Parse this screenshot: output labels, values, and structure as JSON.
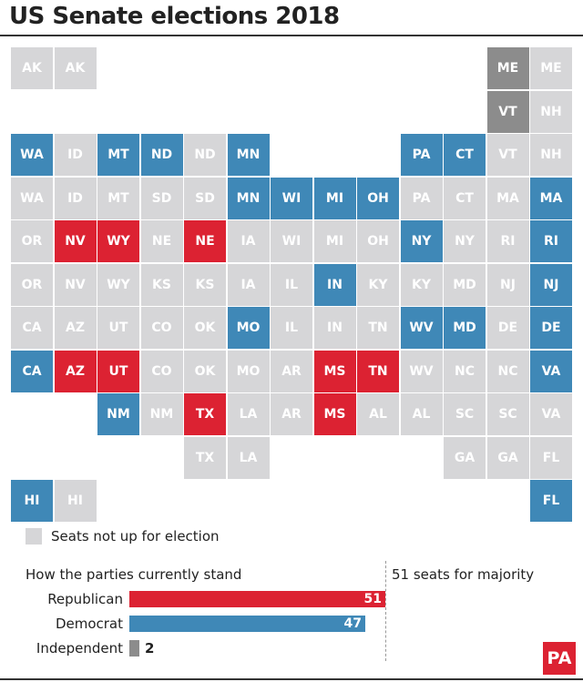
{
  "title": "US Senate elections 2018",
  "colors": {
    "not_up": "#d6d6d8",
    "democrat": "#3f88b7",
    "republican": "#dc2232",
    "independent": "#8c8c8c"
  },
  "map": {
    "grid_columns": 13,
    "grid_rows": 11,
    "tiles": [
      {
        "label": "AK",
        "status": "not_up",
        "col": 0,
        "row": 0
      },
      {
        "label": "AK",
        "status": "not_up",
        "col": 1,
        "row": 0
      },
      {
        "label": "ME",
        "status": "independent",
        "col": 11,
        "row": 0
      },
      {
        "label": "ME",
        "status": "not_up",
        "col": 12,
        "row": 0
      },
      {
        "label": "VT",
        "status": "independent",
        "col": 11,
        "row": 1
      },
      {
        "label": "NH",
        "status": "not_up",
        "col": 12,
        "row": 1
      },
      {
        "label": "WA",
        "status": "democrat",
        "col": 0,
        "row": 2
      },
      {
        "label": "ID",
        "status": "not_up",
        "col": 1,
        "row": 2
      },
      {
        "label": "MT",
        "status": "democrat",
        "col": 2,
        "row": 2
      },
      {
        "label": "ND",
        "status": "democrat",
        "col": 3,
        "row": 2
      },
      {
        "label": "ND",
        "status": "not_up",
        "col": 4,
        "row": 2
      },
      {
        "label": "MN",
        "status": "democrat",
        "col": 5,
        "row": 2
      },
      {
        "label": "PA",
        "status": "democrat",
        "col": 9,
        "row": 2
      },
      {
        "label": "CT",
        "status": "democrat",
        "col": 10,
        "row": 2
      },
      {
        "label": "VT",
        "status": "not_up",
        "col": 11,
        "row": 2
      },
      {
        "label": "NH",
        "status": "not_up",
        "col": 12,
        "row": 2
      },
      {
        "label": "WA",
        "status": "not_up",
        "col": 0,
        "row": 3
      },
      {
        "label": "ID",
        "status": "not_up",
        "col": 1,
        "row": 3
      },
      {
        "label": "MT",
        "status": "not_up",
        "col": 2,
        "row": 3
      },
      {
        "label": "SD",
        "status": "not_up",
        "col": 3,
        "row": 3
      },
      {
        "label": "SD",
        "status": "not_up",
        "col": 4,
        "row": 3
      },
      {
        "label": "MN",
        "status": "democrat",
        "col": 5,
        "row": 3
      },
      {
        "label": "WI",
        "status": "democrat",
        "col": 6,
        "row": 3
      },
      {
        "label": "MI",
        "status": "democrat",
        "col": 7,
        "row": 3
      },
      {
        "label": "OH",
        "status": "democrat",
        "col": 8,
        "row": 3
      },
      {
        "label": "PA",
        "status": "not_up",
        "col": 9,
        "row": 3
      },
      {
        "label": "CT",
        "status": "not_up",
        "col": 10,
        "row": 3
      },
      {
        "label": "MA",
        "status": "not_up",
        "col": 11,
        "row": 3
      },
      {
        "label": "MA",
        "status": "democrat",
        "col": 12,
        "row": 3
      },
      {
        "label": "OR",
        "status": "not_up",
        "col": 0,
        "row": 4
      },
      {
        "label": "NV",
        "status": "republican",
        "col": 1,
        "row": 4
      },
      {
        "label": "WY",
        "status": "republican",
        "col": 2,
        "row": 4
      },
      {
        "label": "NE",
        "status": "not_up",
        "col": 3,
        "row": 4
      },
      {
        "label": "NE",
        "status": "republican",
        "col": 4,
        "row": 4
      },
      {
        "label": "IA",
        "status": "not_up",
        "col": 5,
        "row": 4
      },
      {
        "label": "WI",
        "status": "not_up",
        "col": 6,
        "row": 4
      },
      {
        "label": "MI",
        "status": "not_up",
        "col": 7,
        "row": 4
      },
      {
        "label": "OH",
        "status": "not_up",
        "col": 8,
        "row": 4
      },
      {
        "label": "NY",
        "status": "democrat",
        "col": 9,
        "row": 4
      },
      {
        "label": "NY",
        "status": "not_up",
        "col": 10,
        "row": 4
      },
      {
        "label": "RI",
        "status": "not_up",
        "col": 11,
        "row": 4
      },
      {
        "label": "RI",
        "status": "democrat",
        "col": 12,
        "row": 4
      },
      {
        "label": "OR",
        "status": "not_up",
        "col": 0,
        "row": 5
      },
      {
        "label": "NV",
        "status": "not_up",
        "col": 1,
        "row": 5
      },
      {
        "label": "WY",
        "status": "not_up",
        "col": 2,
        "row": 5
      },
      {
        "label": "KS",
        "status": "not_up",
        "col": 3,
        "row": 5
      },
      {
        "label": "KS",
        "status": "not_up",
        "col": 4,
        "row": 5
      },
      {
        "label": "IA",
        "status": "not_up",
        "col": 5,
        "row": 5
      },
      {
        "label": "IL",
        "status": "not_up",
        "col": 6,
        "row": 5
      },
      {
        "label": "IN",
        "status": "democrat",
        "col": 7,
        "row": 5
      },
      {
        "label": "KY",
        "status": "not_up",
        "col": 8,
        "row": 5
      },
      {
        "label": "KY",
        "status": "not_up",
        "col": 9,
        "row": 5
      },
      {
        "label": "MD",
        "status": "not_up",
        "col": 10,
        "row": 5
      },
      {
        "label": "NJ",
        "status": "not_up",
        "col": 11,
        "row": 5
      },
      {
        "label": "NJ",
        "status": "democrat",
        "col": 12,
        "row": 5
      },
      {
        "label": "CA",
        "status": "not_up",
        "col": 0,
        "row": 6
      },
      {
        "label": "AZ",
        "status": "not_up",
        "col": 1,
        "row": 6
      },
      {
        "label": "UT",
        "status": "not_up",
        "col": 2,
        "row": 6
      },
      {
        "label": "CO",
        "status": "not_up",
        "col": 3,
        "row": 6
      },
      {
        "label": "OK",
        "status": "not_up",
        "col": 4,
        "row": 6
      },
      {
        "label": "MO",
        "status": "democrat",
        "col": 5,
        "row": 6
      },
      {
        "label": "IL",
        "status": "not_up",
        "col": 6,
        "row": 6
      },
      {
        "label": "IN",
        "status": "not_up",
        "col": 7,
        "row": 6
      },
      {
        "label": "TN",
        "status": "not_up",
        "col": 8,
        "row": 6
      },
      {
        "label": "WV",
        "status": "democrat",
        "col": 9,
        "row": 6
      },
      {
        "label": "MD",
        "status": "democrat",
        "col": 10,
        "row": 6
      },
      {
        "label": "DE",
        "status": "not_up",
        "col": 11,
        "row": 6
      },
      {
        "label": "DE",
        "status": "democrat",
        "col": 12,
        "row": 6
      },
      {
        "label": "CA",
        "status": "democrat",
        "col": 0,
        "row": 7
      },
      {
        "label": "AZ",
        "status": "republican",
        "col": 1,
        "row": 7
      },
      {
        "label": "UT",
        "status": "republican",
        "col": 2,
        "row": 7
      },
      {
        "label": "CO",
        "status": "not_up",
        "col": 3,
        "row": 7
      },
      {
        "label": "OK",
        "status": "not_up",
        "col": 4,
        "row": 7
      },
      {
        "label": "MO",
        "status": "not_up",
        "col": 5,
        "row": 7
      },
      {
        "label": "AR",
        "status": "not_up",
        "col": 6,
        "row": 7
      },
      {
        "label": "MS",
        "status": "republican",
        "col": 7,
        "row": 7
      },
      {
        "label": "TN",
        "status": "republican",
        "col": 8,
        "row": 7
      },
      {
        "label": "WV",
        "status": "not_up",
        "col": 9,
        "row": 7
      },
      {
        "label": "NC",
        "status": "not_up",
        "col": 10,
        "row": 7
      },
      {
        "label": "NC",
        "status": "not_up",
        "col": 11,
        "row": 7
      },
      {
        "label": "VA",
        "status": "democrat",
        "col": 12,
        "row": 7
      },
      {
        "label": "NM",
        "status": "democrat",
        "col": 2,
        "row": 8
      },
      {
        "label": "NM",
        "status": "not_up",
        "col": 3,
        "row": 8
      },
      {
        "label": "TX",
        "status": "republican",
        "col": 4,
        "row": 8
      },
      {
        "label": "LA",
        "status": "not_up",
        "col": 5,
        "row": 8
      },
      {
        "label": "AR",
        "status": "not_up",
        "col": 6,
        "row": 8
      },
      {
        "label": "MS",
        "status": "republican",
        "col": 7,
        "row": 8
      },
      {
        "label": "AL",
        "status": "not_up",
        "col": 8,
        "row": 8
      },
      {
        "label": "AL",
        "status": "not_up",
        "col": 9,
        "row": 8
      },
      {
        "label": "SC",
        "status": "not_up",
        "col": 10,
        "row": 8
      },
      {
        "label": "SC",
        "status": "not_up",
        "col": 11,
        "row": 8
      },
      {
        "label": "VA",
        "status": "not_up",
        "col": 12,
        "row": 8
      },
      {
        "label": "TX",
        "status": "not_up",
        "col": 4,
        "row": 9
      },
      {
        "label": "LA",
        "status": "not_up",
        "col": 5,
        "row": 9
      },
      {
        "label": "GA",
        "status": "not_up",
        "col": 10,
        "row": 9
      },
      {
        "label": "GA",
        "status": "not_up",
        "col": 11,
        "row": 9
      },
      {
        "label": "FL",
        "status": "not_up",
        "col": 12,
        "row": 9
      },
      {
        "label": "HI",
        "status": "democrat",
        "col": 0,
        "row": 10
      },
      {
        "label": "HI",
        "status": "not_up",
        "col": 1,
        "row": 10
      },
      {
        "label": "FL",
        "status": "democrat",
        "col": 12,
        "row": 10
      }
    ]
  },
  "legend": {
    "not_up_label": "Seats not up for election"
  },
  "standings": {
    "title": "How the parties currently stand",
    "majority_label": "51 seats for majority",
    "majority": 51,
    "parties": [
      {
        "name": "Republican",
        "seats": 51,
        "color": "#dc2232",
        "label_inside": true
      },
      {
        "name": "Democrat",
        "seats": 47,
        "color": "#3f88b7",
        "label_inside": true
      },
      {
        "name": "Independent",
        "seats": 2,
        "color": "#8c8c8c",
        "label_inside": false
      }
    ]
  },
  "logo": {
    "text": "PA"
  }
}
